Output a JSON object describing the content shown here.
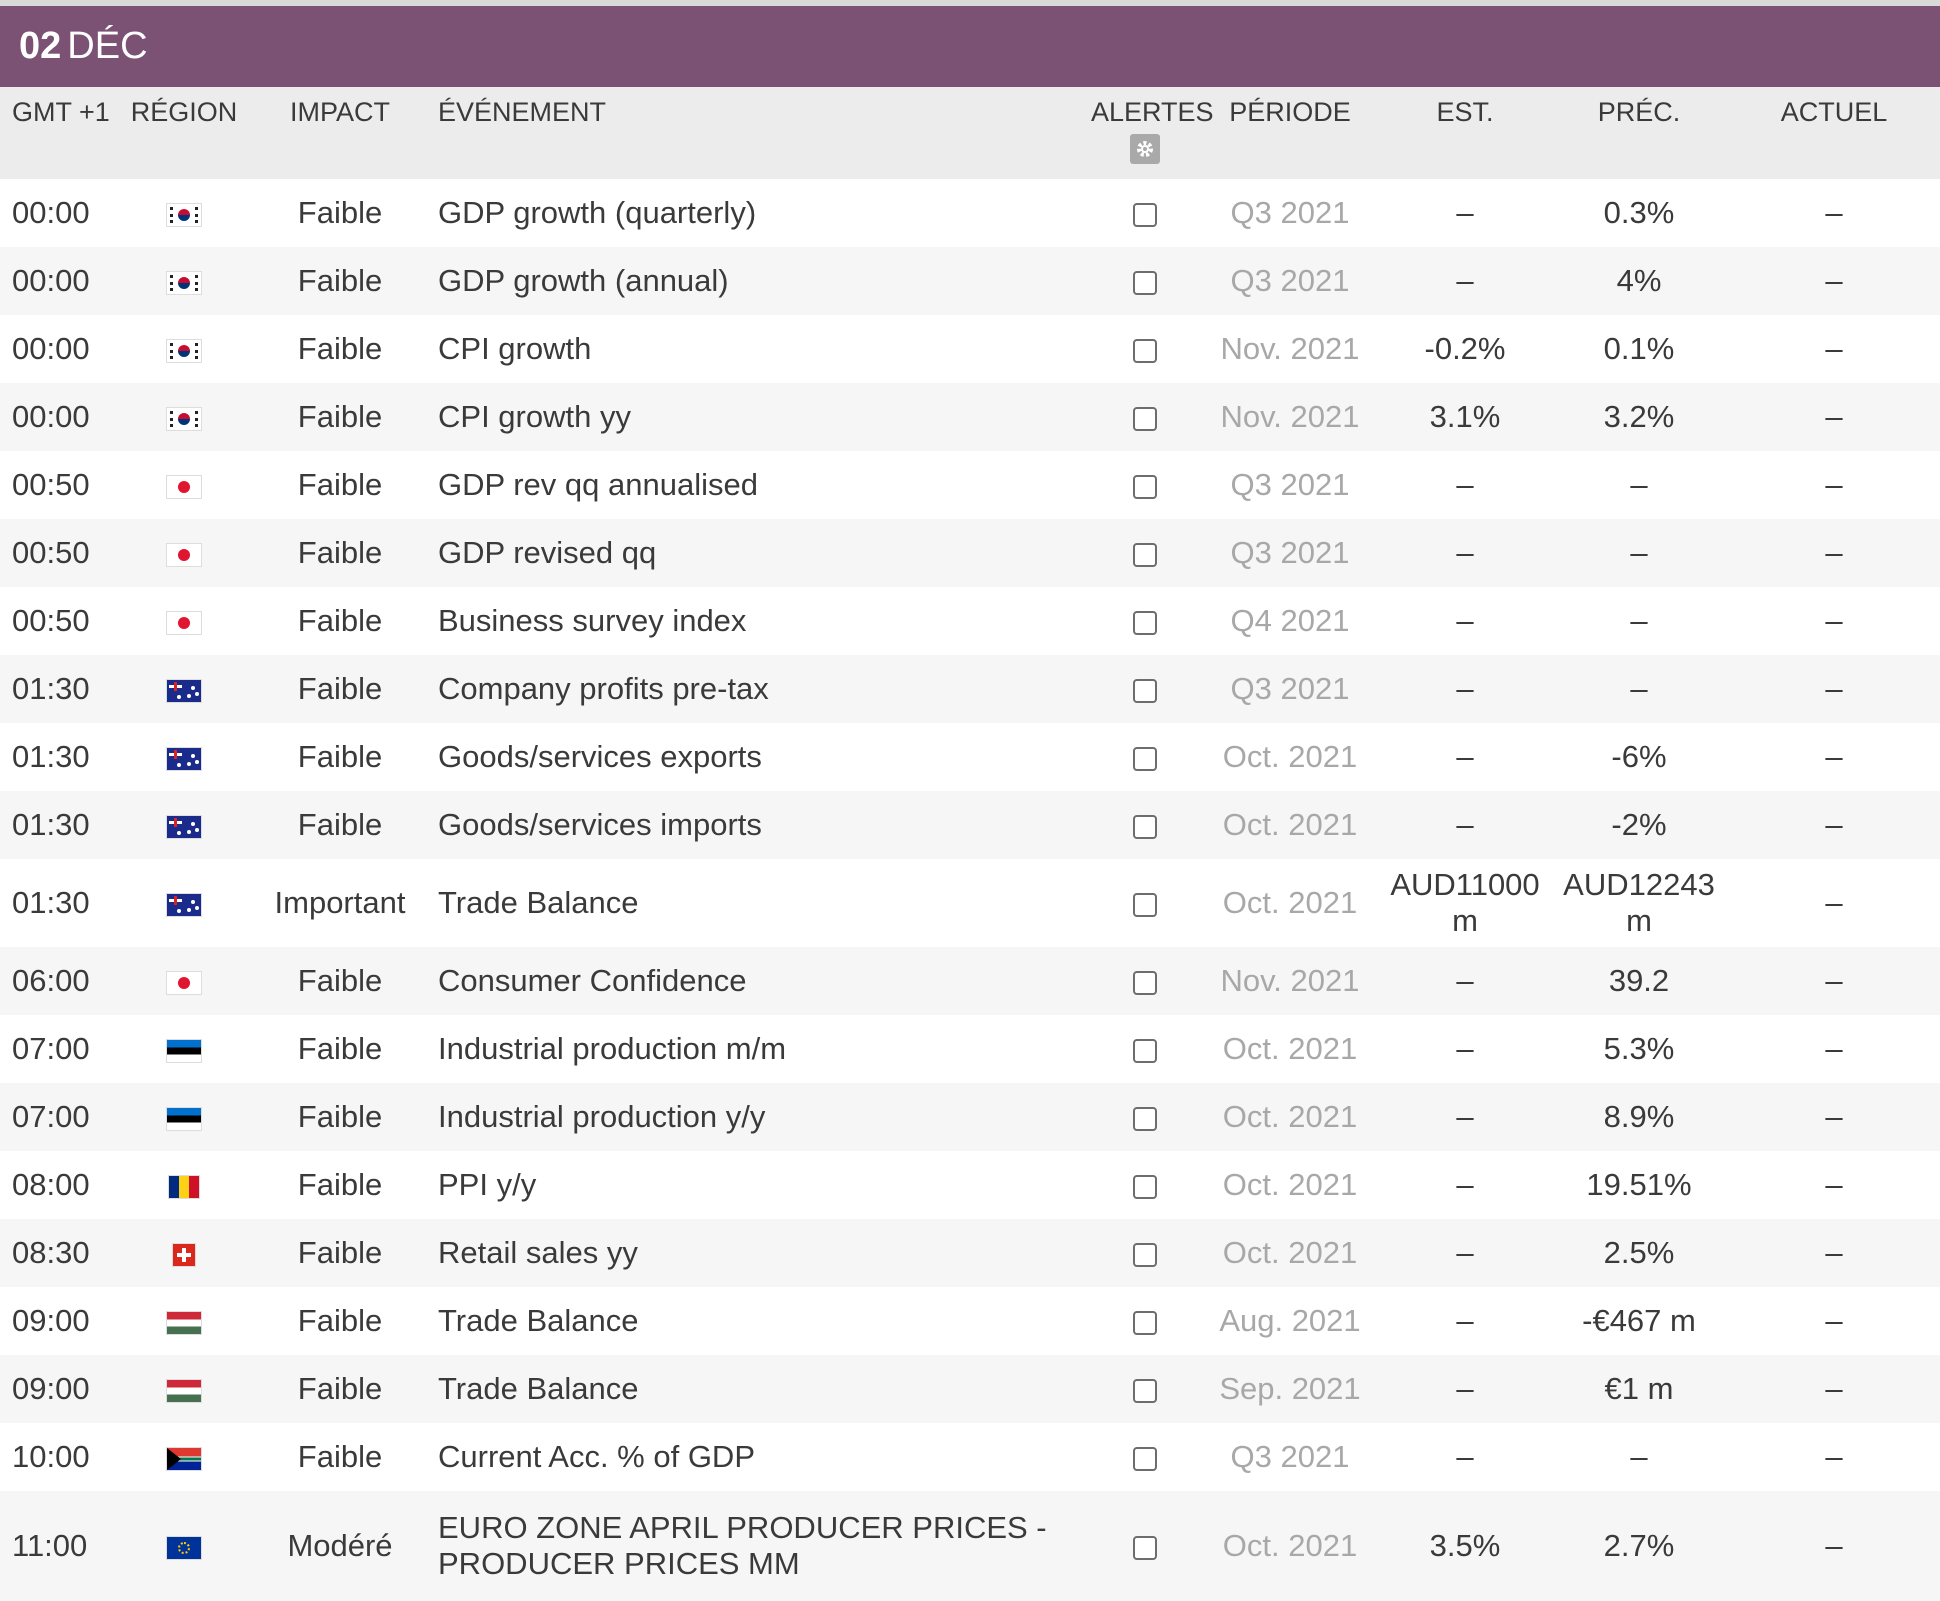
{
  "day_header": {
    "day": "02",
    "month": "DÉC"
  },
  "columns": {
    "time": "GMT +1",
    "region": "RÉGION",
    "impact": "IMPACT",
    "event": "ÉVÉNEMENT",
    "alerts": "ALERTES",
    "period": "PÉRIODE",
    "est": "EST.",
    "prev": "PRÉC.",
    "actual": "ACTUEL"
  },
  "icons": {
    "alerts_settings": "gear-icon"
  },
  "colors": {
    "header_bg": "#7b5274",
    "column_header_bg": "#ececec",
    "period_text": "#a8a8a8"
  },
  "rows": [
    {
      "time": "00:00",
      "region": "south-korea",
      "impact": "Faible",
      "event": "GDP growth (quarterly)",
      "period": "Q3 2021",
      "est": "–",
      "prev": "0.3%",
      "actual": "–"
    },
    {
      "time": "00:00",
      "region": "south-korea",
      "impact": "Faible",
      "event": "GDP growth (annual)",
      "period": "Q3 2021",
      "est": "–",
      "prev": "4%",
      "actual": "–"
    },
    {
      "time": "00:00",
      "region": "south-korea",
      "impact": "Faible",
      "event": "CPI growth",
      "period": "Nov. 2021",
      "est": "-0.2%",
      "prev": "0.1%",
      "actual": "–"
    },
    {
      "time": "00:00",
      "region": "south-korea",
      "impact": "Faible",
      "event": "CPI growth yy",
      "period": "Nov. 2021",
      "est": "3.1%",
      "prev": "3.2%",
      "actual": "–"
    },
    {
      "time": "00:50",
      "region": "japan",
      "impact": "Faible",
      "event": "GDP rev qq annualised",
      "period": "Q3 2021",
      "est": "–",
      "prev": "–",
      "actual": "–"
    },
    {
      "time": "00:50",
      "region": "japan",
      "impact": "Faible",
      "event": "GDP revised qq",
      "period": "Q3 2021",
      "est": "–",
      "prev": "–",
      "actual": "–"
    },
    {
      "time": "00:50",
      "region": "japan",
      "impact": "Faible",
      "event": "Business survey index",
      "period": "Q4 2021",
      "est": "–",
      "prev": "–",
      "actual": "–"
    },
    {
      "time": "01:30",
      "region": "australia",
      "impact": "Faible",
      "event": "Company profits pre-tax",
      "period": "Q3 2021",
      "est": "–",
      "prev": "–",
      "actual": "–"
    },
    {
      "time": "01:30",
      "region": "australia",
      "impact": "Faible",
      "event": "Goods/services exports",
      "period": "Oct. 2021",
      "est": "–",
      "prev": "-6%",
      "actual": "–"
    },
    {
      "time": "01:30",
      "region": "australia",
      "impact": "Faible",
      "event": "Goods/services imports",
      "period": "Oct. 2021",
      "est": "–",
      "prev": "-2%",
      "actual": "–"
    },
    {
      "time": "01:30",
      "region": "australia",
      "impact": "Important",
      "event": "Trade Balance",
      "period": "Oct. 2021",
      "est": "AUD11000 m",
      "prev": "AUD12243 m",
      "actual": "–"
    },
    {
      "time": "06:00",
      "region": "japan",
      "impact": "Faible",
      "event": "Consumer Confidence",
      "period": "Nov. 2021",
      "est": "–",
      "prev": "39.2",
      "actual": "–"
    },
    {
      "time": "07:00",
      "region": "estonia",
      "impact": "Faible",
      "event": "Industrial production m/m",
      "period": "Oct. 2021",
      "est": "–",
      "prev": "5.3%",
      "actual": "–"
    },
    {
      "time": "07:00",
      "region": "estonia",
      "impact": "Faible",
      "event": "Industrial production y/y",
      "period": "Oct. 2021",
      "est": "–",
      "prev": "8.9%",
      "actual": "–"
    },
    {
      "time": "08:00",
      "region": "romania",
      "impact": "Faible",
      "event": "PPI y/y",
      "period": "Oct. 2021",
      "est": "–",
      "prev": "19.51%",
      "actual": "–"
    },
    {
      "time": "08:30",
      "region": "switzerland",
      "impact": "Faible",
      "event": "Retail sales yy",
      "period": "Oct. 2021",
      "est": "–",
      "prev": "2.5%",
      "actual": "–"
    },
    {
      "time": "09:00",
      "region": "hungary",
      "impact": "Faible",
      "event": "Trade Balance",
      "period": "Aug. 2021",
      "est": "–",
      "prev": "-€467 m",
      "actual": "–"
    },
    {
      "time": "09:00",
      "region": "hungary",
      "impact": "Faible",
      "event": "Trade Balance",
      "period": "Sep. 2021",
      "est": "–",
      "prev": "€1 m",
      "actual": "–"
    },
    {
      "time": "10:00",
      "region": "south-africa",
      "impact": "Faible",
      "event": "Current Acc. % of GDP",
      "period": "Q3 2021",
      "est": "–",
      "prev": "–",
      "actual": "–"
    },
    {
      "time": "11:00",
      "region": "euro-zone",
      "impact": "Modéré",
      "event": "EURO ZONE APRIL PRODUCER PRICES - PRODUCER PRICES MM",
      "period": "Oct. 2021",
      "est": "3.5%",
      "prev": "2.7%",
      "actual": "–"
    }
  ]
}
